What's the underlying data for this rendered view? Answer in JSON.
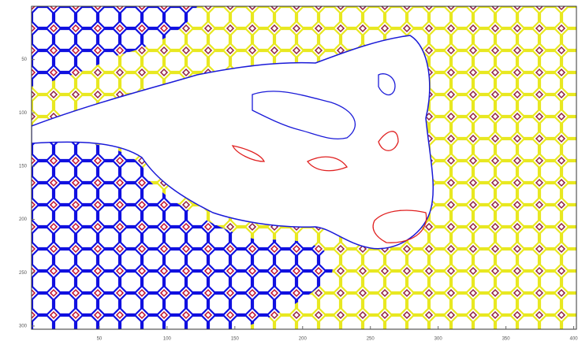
{
  "chart_data": {
    "type": "contour",
    "xlim": [
      0,
      402
    ],
    "ylim": [
      0,
      303
    ],
    "y_reversed": true,
    "xticks": [
      50,
      100,
      150,
      200,
      250,
      300,
      350,
      400
    ],
    "yticks": [
      50,
      100,
      150,
      200,
      250,
      300
    ]
  }
}
